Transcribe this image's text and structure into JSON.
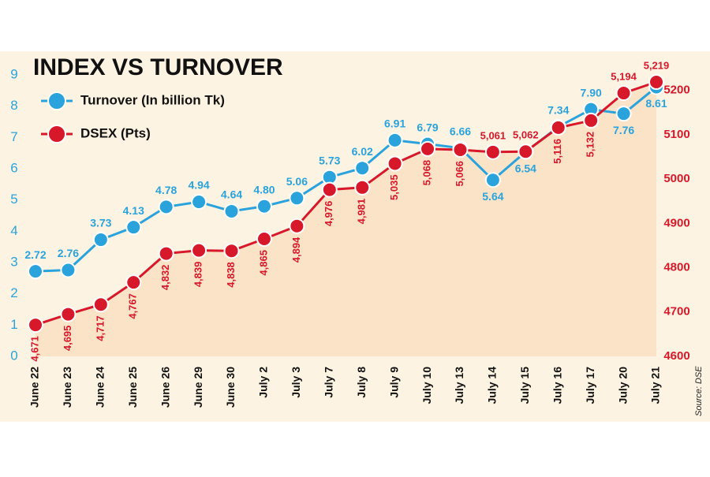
{
  "chart_data": {
    "type": "line",
    "title": "INDEX VS TURNOVER",
    "source": "Source: DSE",
    "categories": [
      "June 22",
      "June 23",
      "June 24",
      "June 25",
      "June 26",
      "June 29",
      "June 30",
      "July 2",
      "July 3",
      "July 7",
      "July 8",
      "July 9",
      "July 10",
      "July 13",
      "July 14",
      "July 15",
      "July 16",
      "July 17",
      "July 20",
      "July 21"
    ],
    "series": [
      {
        "name": "Turnover (In billion Tk)",
        "color": "#2aa3dc",
        "values": [
          2.72,
          2.76,
          3.73,
          4.13,
          4.78,
          4.94,
          4.64,
          4.8,
          5.06,
          5.73,
          6.02,
          6.91,
          6.79,
          6.66,
          5.64,
          6.54,
          7.34,
          7.9,
          7.76,
          8.61
        ],
        "value_labels": [
          "2.72",
          "2.76",
          "3.73",
          "4.13",
          "4.78",
          "4.94",
          "4.64",
          "4.80",
          "5.06",
          "5.73",
          "6.02",
          "6.91",
          "6.79",
          "6.66",
          "5.64",
          "6.54",
          "7.34",
          "7.90",
          "7.76",
          "8.61"
        ]
      },
      {
        "name": "DSEX (Pts)",
        "color": "#d7182a",
        "axis": "y2",
        "area_color": "#fbe3c8",
        "values": [
          4671,
          4695,
          4717,
          4767,
          4832,
          4839,
          4838,
          4865,
          4894,
          4976,
          4981,
          5035,
          5068,
          5066,
          5061,
          5062,
          5116,
          5132,
          5194,
          5219
        ],
        "value_labels": [
          "4,671",
          "4,695",
          "4,717",
          "4,767",
          "4,832",
          "4,839",
          "4,838",
          "4,865",
          "4,894",
          "4,976",
          "4,981",
          "5,035",
          "5,068",
          "5,066",
          "5,061",
          "5,062",
          "5,116",
          "5,132",
          "5,194",
          "5,219"
        ]
      }
    ],
    "ylim": [
      0,
      9
    ],
    "yticks": [
      0,
      1,
      2,
      3,
      4,
      5,
      6,
      7,
      8,
      9
    ],
    "y2lim": [
      4600,
      5235
    ],
    "y2ticks": [
      4600,
      4700,
      4800,
      4900,
      5000,
      5100,
      5200
    ]
  }
}
